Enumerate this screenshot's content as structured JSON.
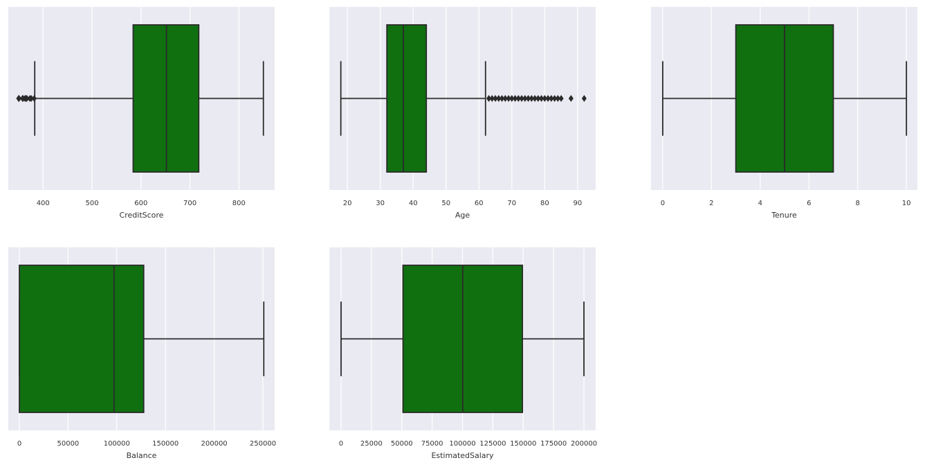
{
  "chart_data": [
    {
      "type": "box",
      "xlabel": "CreditScore",
      "xlim": [
        329,
        873
      ],
      "xticks": [
        400,
        500,
        600,
        700,
        800
      ],
      "grid": true,
      "color": "#107010",
      "whislo": 383,
      "q1": 584,
      "med": 652,
      "q3": 718,
      "whishi": 850,
      "fliers": [
        350,
        351,
        358,
        359,
        363,
        365,
        367,
        373,
        376,
        382
      ]
    },
    {
      "type": "box",
      "xlabel": "Age",
      "xlim": [
        14.5,
        95.5
      ],
      "xticks": [
        20,
        30,
        40,
        50,
        60,
        70,
        80,
        90
      ],
      "grid": true,
      "color": "#107010",
      "whislo": 18,
      "q1": 32,
      "med": 37,
      "q3": 44,
      "whishi": 62,
      "fliers": [
        63,
        64,
        65,
        66,
        67,
        68,
        69,
        70,
        71,
        72,
        73,
        74,
        75,
        76,
        77,
        78,
        79,
        80,
        81,
        82,
        83,
        84,
        85,
        88,
        92
      ]
    },
    {
      "type": "box",
      "xlabel": "Tenure",
      "xlim": [
        -0.48,
        10.45
      ],
      "xticks": [
        0,
        2,
        4,
        6,
        8,
        10
      ],
      "grid": true,
      "color": "#107010",
      "whislo": 0,
      "q1": 3,
      "med": 5,
      "q3": 7,
      "whishi": 10,
      "fliers": []
    },
    {
      "type": "box",
      "xlabel": "Balance",
      "xlim": [
        -11364,
        262074
      ],
      "xticks": [
        0,
        50000,
        100000,
        150000,
        200000,
        250000
      ],
      "grid": true,
      "color": "#107010",
      "whislo": 0,
      "q1": 0,
      "med": 97199,
      "q3": 127644,
      "whishi": 250898,
      "fliers": []
    },
    {
      "type": "box",
      "xlabel": "EstimatedSalary",
      "xlim": [
        -9659,
        209659
      ],
      "xticks": [
        0,
        25000,
        50000,
        75000,
        100000,
        125000,
        150000,
        175000,
        200000
      ],
      "grid": true,
      "color": "#107010",
      "whislo": 11.58,
      "q1": 51002,
      "med": 100194,
      "q3": 149388,
      "whishi": 199992,
      "fliers": []
    }
  ]
}
